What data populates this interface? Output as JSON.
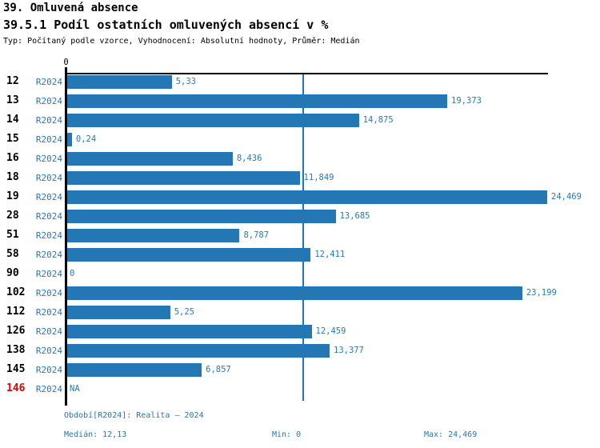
{
  "header": {
    "title": "39. Omluvená absence",
    "subtitle": "39.5.1 Podíl ostatních omluvených absencí v %",
    "meta": "Typ: Počítaný podle vzorce, Vyhodnocení: Absolutní hodnoty, Průměr: Medián"
  },
  "colors": {
    "bar": "#2277b4",
    "value_text": "#2878b8",
    "footer_text": "#1f77b4",
    "highlight_red": "#e00000",
    "axis": "#000000",
    "median_line": "#1f77b4"
  },
  "chart_data": {
    "type": "bar",
    "orientation": "horizontal",
    "series_label": "R2024",
    "categories": [
      "12",
      "13",
      "14",
      "15",
      "16",
      "18",
      "19",
      "28",
      "51",
      "58",
      "90",
      "102",
      "112",
      "126",
      "138",
      "145",
      "146"
    ],
    "values": [
      5.33,
      19.373,
      14.875,
      0.24,
      8.436,
      11.849,
      24.469,
      13.685,
      8.787,
      12.411,
      0,
      23.199,
      5.25,
      12.459,
      13.377,
      6.857,
      null
    ],
    "value_labels": [
      "5,33",
      "19,373",
      "14,875",
      "0,24",
      "8,436",
      "11,849",
      "24,469",
      "13,685",
      "8,787",
      "12,411",
      "0",
      "23,199",
      "5,25",
      "12,459",
      "13,377",
      "6,857",
      "NA"
    ],
    "highlighted_category": "146",
    "xlim": [
      0,
      24.469
    ],
    "x_axis_ticks": [
      "0"
    ],
    "median_value": 12.13,
    "grid": false,
    "legend_position": "none"
  },
  "footer": {
    "period": "Období[R2024]: Realita – 2024",
    "median": "Medián: 12,13",
    "min": "Min: 0",
    "max": "Max: 24,469"
  }
}
